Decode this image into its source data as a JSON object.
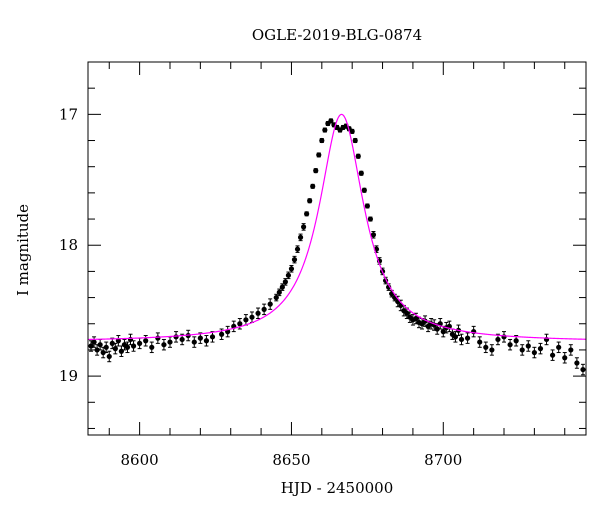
{
  "chart_data": {
    "type": "scatter",
    "title": "OGLE-2019-BLG-0874",
    "xlabel": "HJD - 2450000",
    "ylabel": "I magnitude",
    "xlim": [
      8583,
      8747
    ],
    "ylim": [
      16.6,
      19.45
    ],
    "y_inverted": true,
    "x_ticks": [
      8600,
      8650,
      8700
    ],
    "y_ticks": [
      17,
      18,
      19
    ],
    "grid": false,
    "legend": "none",
    "colors": {
      "points": "#000000",
      "model": "#ff00ff"
    },
    "model": {
      "name": "",
      "t0": 8666.5,
      "mag_base": 18.74,
      "mag_peak": 17.0,
      "width": 9.0
    },
    "series": [
      {
        "x": [
          8584,
          8585,
          8586,
          8587,
          8588,
          8589,
          8590,
          8591,
          8592,
          8593,
          8594,
          8595,
          8596,
          8597,
          8598,
          8600,
          8602,
          8604,
          8606,
          8608,
          8610,
          8612,
          8614,
          8616,
          8618,
          8620,
          8622,
          8624,
          8627,
          8629,
          8631,
          8633,
          8635,
          8637,
          8639,
          8641,
          8643,
          8645,
          8646,
          8647,
          8648,
          8649,
          8650,
          8651,
          8652,
          8653,
          8654,
          8655,
          8656,
          8657,
          8658,
          8659,
          8660,
          8661,
          8662,
          8663,
          8664,
          8665,
          8666,
          8667,
          8668,
          8669,
          8670,
          8671,
          8672,
          8673,
          8674,
          8675,
          8676,
          8677,
          8678,
          8679,
          8680,
          8681,
          8682,
          8683,
          8684,
          8685,
          8686,
          8687,
          8688,
          8689,
          8690,
          8691,
          8692,
          8693,
          8694,
          8695,
          8696,
          8697,
          8698,
          8699,
          8700,
          8701,
          8702,
          8703,
          8704,
          8705,
          8706,
          8708,
          8710,
          8712,
          8714,
          8716,
          8718,
          8720,
          8722,
          8724,
          8726,
          8728,
          8730,
          8732,
          8734,
          8736,
          8738,
          8740,
          8742,
          8744,
          8746
        ],
        "y": [
          18.77,
          18.74,
          18.8,
          18.76,
          18.82,
          18.78,
          18.85,
          18.75,
          18.79,
          18.73,
          18.81,
          18.76,
          18.78,
          18.72,
          18.77,
          18.75,
          18.73,
          18.78,
          18.71,
          18.76,
          18.74,
          18.7,
          18.72,
          18.69,
          18.74,
          18.71,
          18.73,
          18.7,
          18.68,
          18.66,
          18.62,
          18.6,
          18.57,
          18.55,
          18.52,
          18.49,
          18.45,
          18.4,
          18.36,
          18.32,
          18.28,
          18.23,
          18.18,
          18.11,
          18.03,
          17.94,
          17.86,
          17.76,
          17.66,
          17.55,
          17.43,
          17.31,
          17.2,
          17.12,
          17.07,
          17.05,
          17.08,
          17.1,
          17.12,
          17.1,
          17.09,
          17.11,
          17.13,
          17.2,
          17.32,
          17.45,
          17.58,
          17.7,
          17.8,
          17.92,
          18.03,
          18.12,
          18.2,
          18.27,
          18.32,
          18.37,
          18.4,
          18.43,
          18.46,
          18.5,
          18.52,
          18.55,
          18.57,
          18.56,
          18.59,
          18.6,
          18.58,
          18.62,
          18.6,
          18.61,
          18.64,
          18.6,
          18.66,
          18.63,
          18.62,
          18.68,
          18.7,
          18.65,
          18.72,
          18.71,
          18.66,
          18.74,
          18.78,
          18.8,
          18.72,
          18.7,
          18.76,
          18.73,
          18.8,
          18.77,
          18.82,
          18.79,
          18.72,
          18.84,
          18.78,
          18.86,
          18.8,
          18.9,
          18.95
        ]
      }
    ]
  }
}
